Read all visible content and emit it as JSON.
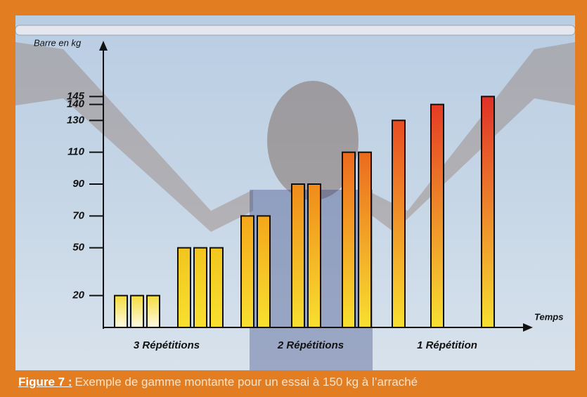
{
  "chart_data": {
    "type": "bar",
    "y_label": "Barre en kg",
    "x_label": "Temps",
    "categories": [
      null,
      null,
      null,
      null,
      null,
      null,
      null,
      null,
      null,
      null,
      null,
      null,
      null,
      null,
      null
    ],
    "values": [
      20,
      20,
      20,
      50,
      50,
      50,
      70,
      70,
      90,
      90,
      110,
      110,
      130,
      140,
      145
    ],
    "colors": [
      "#f3dc3c",
      "#f3dc3c",
      "#f3dc3c",
      "#f2c51e",
      "#f2c51e",
      "#f2c51e",
      "#f4a61a",
      "#f4a61a",
      "#f08a1a",
      "#f08a1a",
      "#ec6a1e",
      "#ec6a1e",
      "#e84c22",
      "#e43c24",
      "#e03028"
    ],
    "groups": [
      "3 Répétitions",
      "2 Répétitions",
      "1 Répétition"
    ],
    "ylim": [
      0,
      150
    ],
    "yticks": [
      20,
      50,
      70,
      90,
      110,
      130,
      140,
      145
    ]
  },
  "caption": {
    "label": "Figure 7 :",
    "text": "Exemple de gamme montante pour un essai à 150 kg à l’arraché"
  }
}
